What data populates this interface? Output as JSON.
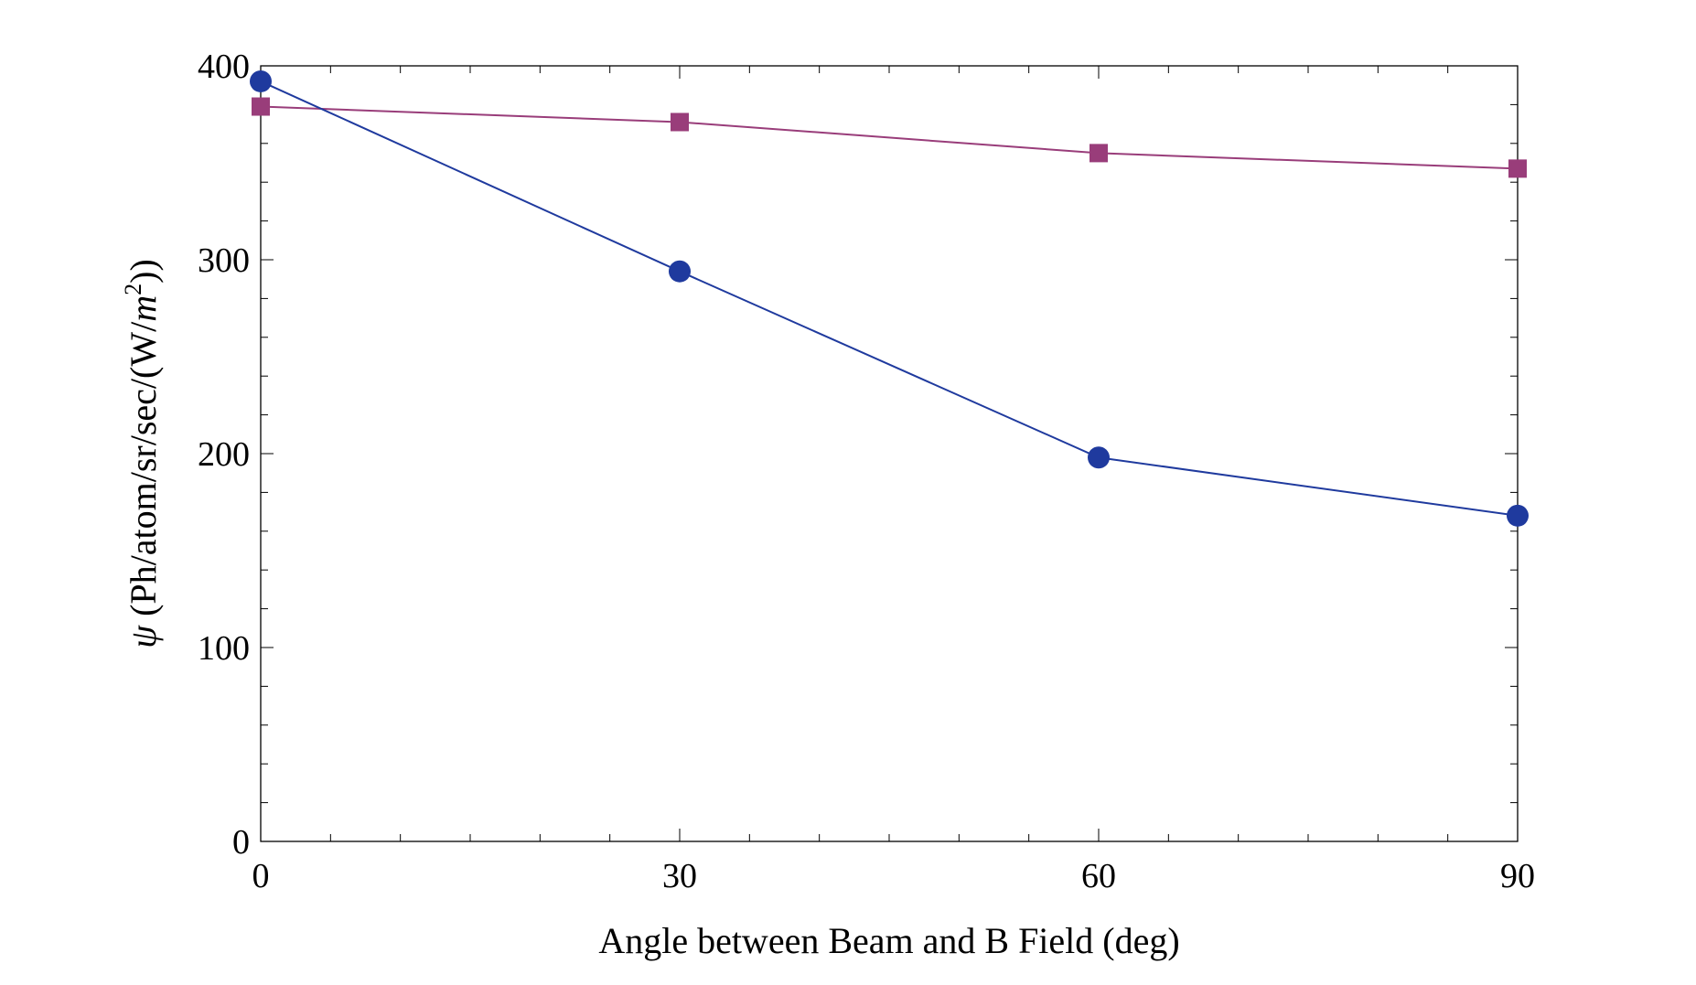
{
  "chart_data": {
    "type": "line",
    "title": "",
    "xlabel": "Angle between Beam and B Field (deg)",
    "ylabel_prefix": "ψ",
    "ylabel_units": "(Ph/atom/sr/sec/(W/",
    "ylabel_unit_var": "m",
    "ylabel_exp": "2",
    "ylabel_close": "))",
    "xlim": [
      0,
      90
    ],
    "ylim": [
      0,
      400
    ],
    "x_ticks": [
      0,
      30,
      60,
      90
    ],
    "x_tick_labels": [
      "0",
      "30",
      "60",
      "90"
    ],
    "y_ticks": [
      0,
      100,
      200,
      300,
      400
    ],
    "y_tick_labels": [
      "0",
      "100",
      "200",
      "300",
      "400"
    ],
    "grid": false,
    "legend": "none",
    "x": [
      0,
      30,
      60,
      90
    ],
    "series": [
      {
        "marker": "square",
        "color": "#993d7a",
        "values": [
          379,
          371,
          355,
          347
        ]
      },
      {
        "marker": "circle",
        "color": "#1f3a9e",
        "values": [
          392,
          294,
          198,
          168
        ]
      }
    ]
  }
}
